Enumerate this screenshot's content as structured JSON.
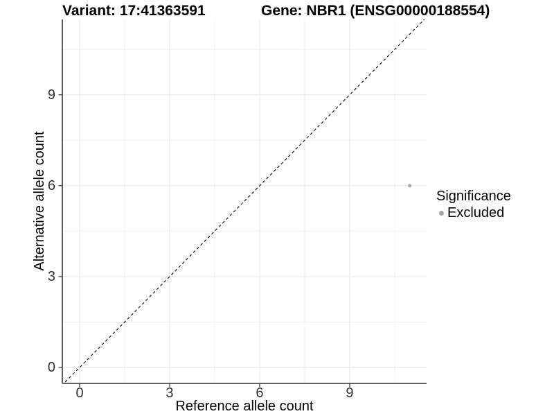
{
  "chart_data": {
    "type": "scatter",
    "title_left": "Variant: 17:41363591",
    "title_right": "Gene: NBR1 (ENSG00000188554)",
    "xlabel": "Reference allele count",
    "ylabel": "Alternative allele count",
    "x_ticks": [
      0,
      3,
      6,
      9
    ],
    "y_ticks": [
      0,
      3,
      6,
      9
    ],
    "x_minor": [
      1.5,
      4.5,
      7.5,
      10.5
    ],
    "y_minor": [
      1.5,
      4.5,
      7.5,
      10.5
    ],
    "xlim": [
      -0.6,
      11.6
    ],
    "ylim": [
      -0.6,
      11.6
    ],
    "grid": true,
    "points": [
      {
        "x": 11,
        "y": 6,
        "series": "Excluded"
      }
    ],
    "reference_line": {
      "style": "dashed",
      "meaning": "identity y = x",
      "from": [
        -0.6,
        -0.6
      ],
      "to": [
        11.8,
        11.8
      ]
    },
    "legend": {
      "title": "Significance",
      "position": "right",
      "items": [
        {
          "label": "Excluded",
          "color": "#a3a3a3",
          "marker": "circle"
        }
      ]
    },
    "colors": {
      "point": "#a8a8a8",
      "grid_major": "#e8e8e8",
      "grid_minor": "#efefef",
      "axis_line": "#4d4d4d",
      "tick_mark": "#333333",
      "tick_label": "#303030",
      "reference_line": "#000000",
      "background": "#ffffff"
    }
  }
}
